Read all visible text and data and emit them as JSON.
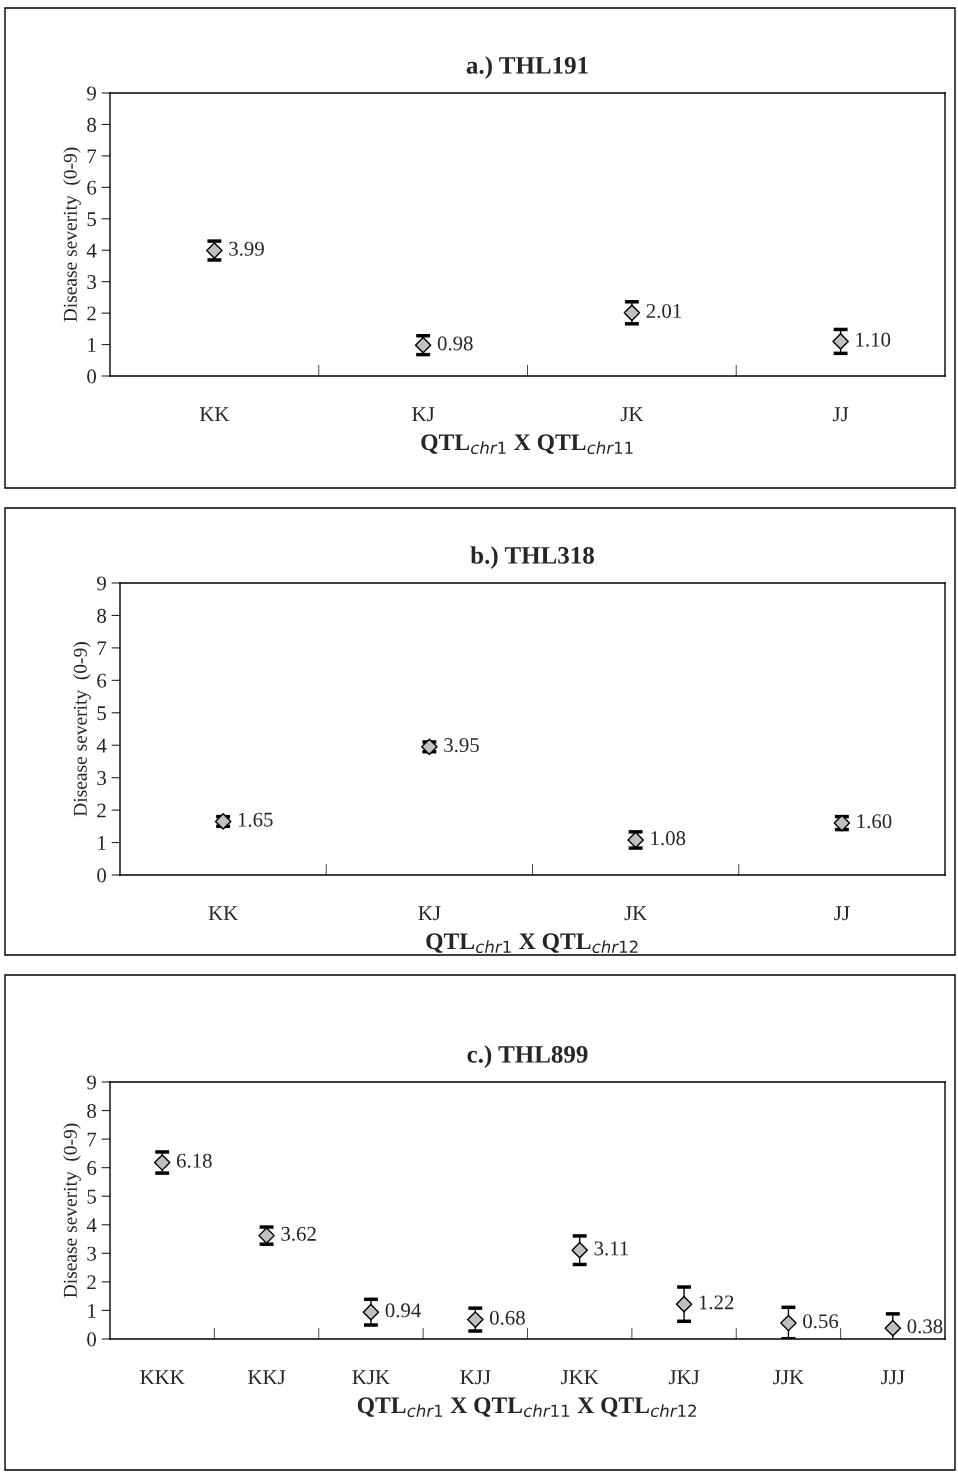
{
  "chart_data": [
    {
      "type": "scatter",
      "title": "a.) THL191",
      "xlabel": "QTL$_{chr1}$ X QTL$_{chr11}$",
      "ylabel": "Disease severity  (0-9)",
      "categories": [
        "KK",
        "KJ",
        "JK",
        "JJ"
      ],
      "series": [
        {
          "color": "#c0c0c0",
          "values": [
            3.99,
            0.98,
            2.01,
            1.1
          ],
          "errors": [
            0.3,
            0.3,
            0.35,
            0.38
          ],
          "value_labels": [
            "3.99",
            "0.98",
            "2.01",
            "1.10"
          ]
        }
      ],
      "ylim": [
        0,
        9
      ],
      "yticks": [
        0,
        1,
        2,
        3,
        4,
        5,
        6,
        7,
        8,
        9
      ],
      "marker": "diamond",
      "grid": false,
      "legend": false
    },
    {
      "type": "scatter",
      "title": "b.) THL318",
      "xlabel": "QTL$_{chr1}$ X QTL$_{chr12}$",
      "ylabel": "Disease severity  (0-9)",
      "categories": [
        "KK",
        "KJ",
        "JK",
        "JJ"
      ],
      "series": [
        {
          "color": "#c0c0c0",
          "values": [
            1.65,
            3.95,
            1.08,
            1.6
          ],
          "errors": [
            0.15,
            0.15,
            0.25,
            0.2
          ],
          "value_labels": [
            "1.65",
            "3.95",
            "1.08",
            "1.60"
          ]
        }
      ],
      "ylim": [
        0,
        9
      ],
      "yticks": [
        0,
        1,
        2,
        3,
        4,
        5,
        6,
        7,
        8,
        9
      ],
      "marker": "diamond",
      "grid": false,
      "legend": false
    },
    {
      "type": "scatter",
      "title": "c.) THL899",
      "xlabel": "QTL$_{chr1}$ X QTL$_{chr11}$ X QTL$_{chr12}$",
      "ylabel": "Disease severity  (0-9)",
      "categories": [
        "KKK",
        "KKJ",
        "KJK",
        "KJJ",
        "JKK",
        "JKJ",
        "JJK",
        "JJJ"
      ],
      "series": [
        {
          "color": "#c0c0c0",
          "values": [
            6.18,
            3.62,
            0.94,
            0.68,
            3.11,
            1.22,
            0.56,
            0.38
          ],
          "errors": [
            0.37,
            0.3,
            0.45,
            0.4,
            0.5,
            0.6,
            0.55,
            0.5
          ],
          "value_labels": [
            "6.18",
            "3.62",
            "0.94",
            "0.68",
            "3.11",
            "1.22",
            "0.56",
            "0.38"
          ]
        }
      ],
      "ylim": [
        0,
        9
      ],
      "yticks": [
        0,
        1,
        2,
        3,
        4,
        5,
        6,
        7,
        8,
        9
      ],
      "marker": "diamond",
      "grid": false,
      "legend": false
    }
  ]
}
